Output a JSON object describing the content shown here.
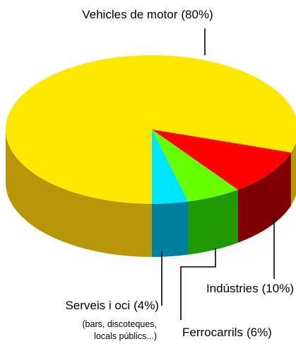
{
  "chart_data": {
    "type": "pie",
    "categories": [
      "Vehicles de motor",
      "Indústries",
      "Ferrocarrils",
      "Serveis i oci"
    ],
    "values": [
      80,
      10,
      6,
      4
    ],
    "value_labels": [
      "(80%)",
      "(10%)",
      "(6%)",
      "(4%)"
    ],
    "colors": [
      "#ffe800",
      "#ff0000",
      "#66ff00",
      "#00e5ff"
    ],
    "side_colors": [
      "#b8960a",
      "#7f0000",
      "#1f9a05",
      "#00809c"
    ],
    "annotation": [
      "(bars, discoteques,",
      "locals públics...)"
    ]
  }
}
